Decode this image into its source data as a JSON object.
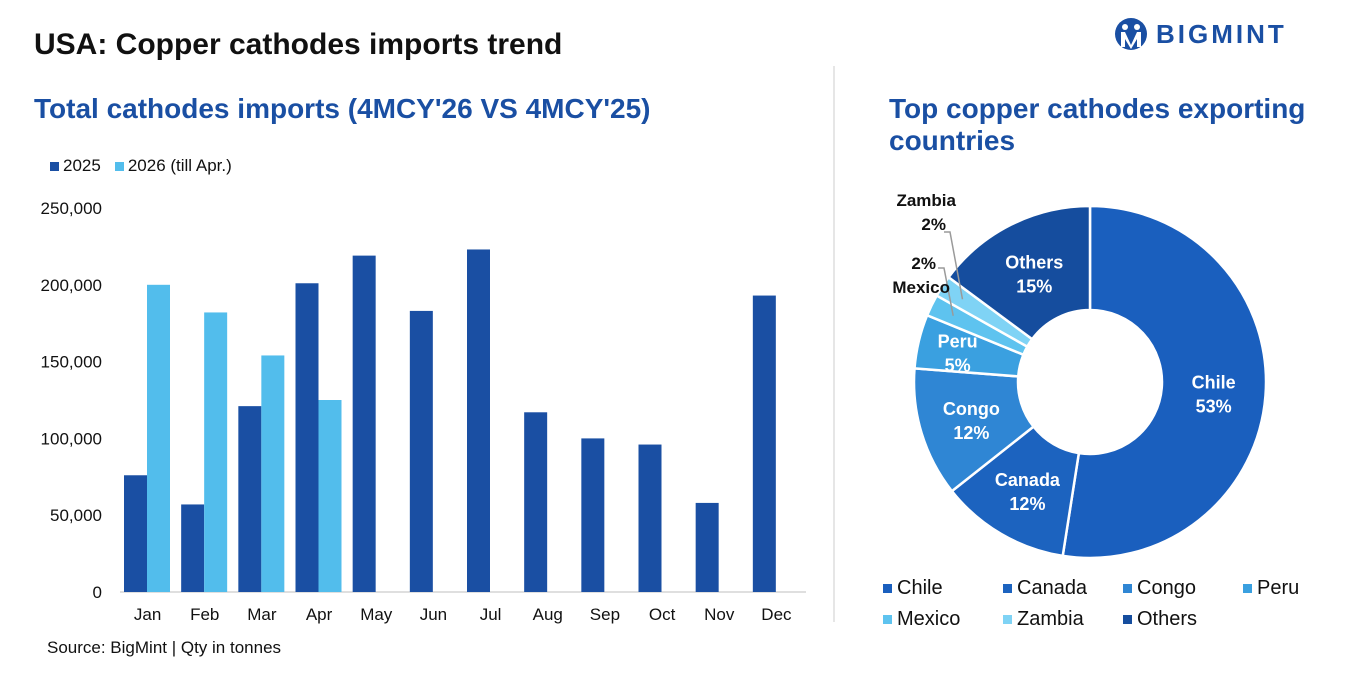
{
  "header": {
    "title": "USA: Copper cathodes imports trend",
    "logo_text": "BIGMINT"
  },
  "left_panel": {
    "title": "Total cathodes imports (4MCY'26 VS 4MCY'25)",
    "source": "Source: BigMint | Qty in tonnes"
  },
  "right_panel": {
    "title": "Top copper cathodes exporting countries"
  },
  "colors": {
    "series_2025": "#1a4fa3",
    "series_2026": "#52bdec",
    "title_blue": "#1a4fa3"
  },
  "chart_data": [
    {
      "type": "bar",
      "title": "Total cathodes imports (4MCY'26 VS 4MCY'25)",
      "categories": [
        "Jan",
        "Feb",
        "Mar",
        "Apr",
        "May",
        "Jun",
        "Jul",
        "Aug",
        "Sep",
        "Oct",
        "Nov",
        "Dec"
      ],
      "series": [
        {
          "name": "2025",
          "color": "#1a4fa3",
          "values": [
            76000,
            57000,
            121000,
            201000,
            219000,
            183000,
            223000,
            117000,
            100000,
            96000,
            58000,
            193000
          ]
        },
        {
          "name": "2026 (till Apr.)",
          "color": "#52bdec",
          "values": [
            200000,
            182000,
            154000,
            125000,
            null,
            null,
            null,
            null,
            null,
            null,
            null,
            null
          ]
        }
      ],
      "ylim": [
        0,
        250000
      ],
      "yticks": [
        "0",
        "50,000",
        "100,000",
        "150,000",
        "200,000",
        "250,000"
      ],
      "ytick_values": [
        0,
        50000,
        100000,
        150000,
        200000,
        250000
      ],
      "grid": false,
      "legend_position": "top-left"
    },
    {
      "type": "pie",
      "title": "Top copper cathodes exporting countries",
      "donut": true,
      "slices": [
        {
          "label": "Chile",
          "value": 53,
          "value_label": "53%",
          "color": "#1a5fbe"
        },
        {
          "label": "Canada",
          "value": 12,
          "value_label": "12%",
          "color": "#1c63bf"
        },
        {
          "label": "Congo",
          "value": 12,
          "value_label": "12%",
          "color": "#2f86d4"
        },
        {
          "label": "Peru",
          "value": 5,
          "value_label": "5%",
          "color": "#3aa0e0"
        },
        {
          "label": "Mexico",
          "value": 2,
          "value_label": "2%",
          "color": "#5ec3ef"
        },
        {
          "label": "Zambia",
          "value": 2,
          "value_label": "2%",
          "color": "#7fd3f5"
        },
        {
          "label": "Others",
          "value": 15,
          "value_label": "15%",
          "color": "#154d9e"
        }
      ],
      "legend_position": "bottom"
    }
  ]
}
